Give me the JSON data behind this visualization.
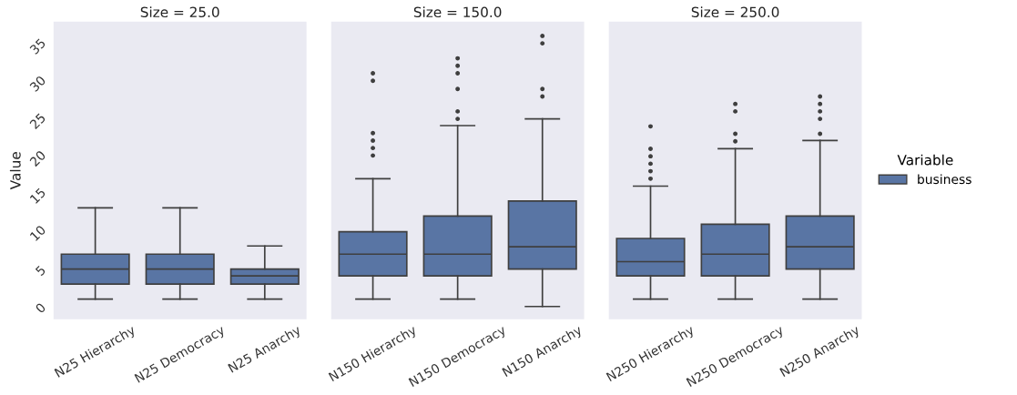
{
  "chart_data": [
    {
      "type": "box",
      "title": "Size = 25.0",
      "ylabel": "Value",
      "categories": [
        "N25 Hierarchy",
        "N25 Democracy",
        "N25 Anarchy"
      ],
      "ylim": [
        -1.5,
        38.5
      ],
      "yticks": [
        0,
        5,
        10,
        15,
        20,
        25,
        30,
        35
      ],
      "grid": false,
      "series": [
        {
          "name": "business",
          "color": "#5975a4",
          "boxes": [
            {
              "low": 1.3,
              "q1": 3.3,
              "median": 5.3,
              "q3": 7.3,
              "high": 13.5
            },
            {
              "low": 1.3,
              "q1": 3.3,
              "median": 5.3,
              "q3": 7.3,
              "high": 13.5
            },
            {
              "low": 1.3,
              "q1": 3.3,
              "median": 4.4,
              "q3": 5.3,
              "high": 8.4
            }
          ]
        }
      ]
    },
    {
      "type": "box",
      "title": "Size = 150.0",
      "categories": [
        "N150 Hierarchy",
        "N150 Democracy",
        "N150 Anarchy"
      ],
      "ylim": [
        -1.5,
        38.5
      ],
      "yticks": [
        0,
        5,
        10,
        15,
        20,
        25,
        30,
        35
      ],
      "tick_labels": "x",
      "grid": false,
      "series": [
        {
          "name": "business",
          "color": "#5975a4",
          "boxes": [
            {
              "low": 1.3,
              "q1": 4.4,
              "median": 7.3,
              "q3": 10.3,
              "high": 17.4,
              "outliers": [
                20.5,
                21.5,
                22.5,
                23.5,
                30.5,
                31.5
              ]
            },
            {
              "low": 1.3,
              "q1": 4.4,
              "median": 7.3,
              "q3": 12.4,
              "high": 24.5,
              "outliers": [
                25.4,
                26.4,
                29.4,
                31.5,
                32.5,
                33.5
              ]
            },
            {
              "low": 0.3,
              "q1": 5.3,
              "median": 8.3,
              "q3": 14.4,
              "high": 25.4,
              "outliers": [
                28.4,
                29.4,
                35.5,
                36.5
              ]
            }
          ]
        }
      ]
    },
    {
      "type": "box",
      "title": "Size = 250.0",
      "categories": [
        "N250 Hierarchy",
        "N250 Democracy",
        "N250 Anarchy"
      ],
      "ylim": [
        -1.5,
        38.5
      ],
      "yticks": [
        0,
        5,
        10,
        15,
        20,
        25,
        30,
        35
      ],
      "tick_labels": "x",
      "grid": false,
      "legend": "right",
      "legend_title": "Variable",
      "series": [
        {
          "name": "business",
          "color": "#5975a4",
          "boxes": [
            {
              "low": 1.3,
              "q1": 4.4,
              "median": 6.3,
              "q3": 9.4,
              "high": 16.4,
              "outliers": [
                17.4,
                18.4,
                19.4,
                20.4,
                21.4,
                24.4
              ]
            },
            {
              "low": 1.3,
              "q1": 4.4,
              "median": 7.3,
              "q3": 11.3,
              "high": 21.4,
              "outliers": [
                22.4,
                23.4,
                26.4,
                27.4
              ]
            },
            {
              "low": 1.3,
              "q1": 5.3,
              "median": 8.3,
              "q3": 12.4,
              "high": 22.5,
              "outliers": [
                23.4,
                25.4,
                26.4,
                27.4,
                28.4
              ]
            }
          ]
        }
      ]
    }
  ]
}
